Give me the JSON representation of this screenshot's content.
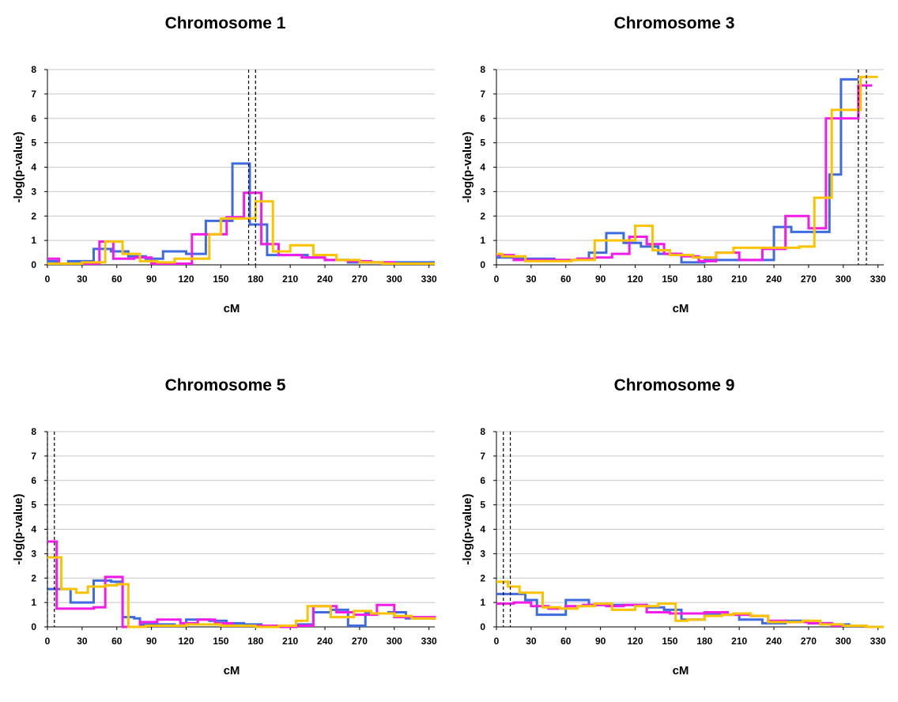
{
  "colors": {
    "blue": "#3F6BE0",
    "magenta": "#F21BE8",
    "yellow": "#F9C300",
    "grid": "#C8C8C8",
    "marker": "#000000"
  },
  "chart_data": [
    {
      "type": "line",
      "title": "Chromosome 1",
      "xlabel": "cM",
      "ylabel": "-log(p-value)",
      "xlim": [
        0,
        335
      ],
      "ylim": [
        0,
        8
      ],
      "xticks": [
        0,
        30,
        60,
        90,
        120,
        150,
        180,
        210,
        240,
        270,
        300,
        330
      ],
      "yticks": [
        0,
        1,
        2,
        3,
        4,
        5,
        6,
        7,
        8
      ],
      "grid": true,
      "markers": [
        174,
        180
      ],
      "series": [
        {
          "color": "blue",
          "x": [
            0,
            8,
            18,
            30,
            40,
            55,
            70,
            85,
            100,
            120,
            137,
            147,
            160,
            175,
            190,
            205,
            225,
            240,
            260,
            280,
            335
          ],
          "y": [
            0.15,
            0.05,
            0.15,
            0.15,
            0.65,
            0.55,
            0.35,
            0.25,
            0.55,
            0.45,
            1.8,
            1.8,
            4.15,
            1.65,
            0.4,
            0.4,
            0.3,
            0.2,
            0.1,
            0.1,
            0.1
          ]
        },
        {
          "color": "magenta",
          "x": [
            0,
            10,
            20,
            35,
            45,
            57,
            75,
            90,
            110,
            125,
            140,
            155,
            170,
            185,
            200,
            220,
            240,
            260,
            280,
            300,
            335
          ],
          "y": [
            0.25,
            0.05,
            0.05,
            0.05,
            0.95,
            0.25,
            0.3,
            0.05,
            0.05,
            1.25,
            1.25,
            1.95,
            2.95,
            0.85,
            0.4,
            0.3,
            0.2,
            0.15,
            0.1,
            0.05,
            0.05
          ]
        },
        {
          "color": "yellow",
          "x": [
            0,
            15,
            30,
            40,
            50,
            65,
            80,
            95,
            110,
            125,
            140,
            150,
            165,
            180,
            195,
            210,
            230,
            250,
            270,
            290,
            335
          ],
          "y": [
            0.05,
            0.05,
            0.1,
            0.1,
            0.95,
            0.45,
            0.15,
            0.1,
            0.25,
            0.25,
            1.25,
            1.9,
            1.9,
            2.6,
            0.55,
            0.8,
            0.4,
            0.2,
            0.1,
            0.05,
            0.05
          ]
        }
      ]
    },
    {
      "type": "line",
      "title": "Chromosome 3",
      "xlabel": "cM",
      "ylabel": "-log(p-value)",
      "xlim": [
        0,
        335
      ],
      "ylim": [
        0,
        8
      ],
      "xticks": [
        0,
        30,
        60,
        90,
        120,
        150,
        180,
        210,
        240,
        270,
        300,
        330
      ],
      "yticks": [
        0,
        1,
        2,
        3,
        4,
        5,
        6,
        7,
        8
      ],
      "grid": true,
      "markers": [
        313,
        320
      ],
      "series": [
        {
          "color": "blue",
          "x": [
            0,
            15,
            30,
            50,
            70,
            80,
            95,
            110,
            125,
            140,
            160,
            180,
            200,
            220,
            240,
            255,
            275,
            288,
            298,
            313
          ],
          "y": [
            0.3,
            0.25,
            0.25,
            0.2,
            0.25,
            0.5,
            1.3,
            0.9,
            0.75,
            0.45,
            0.1,
            0.2,
            0.2,
            0.2,
            1.55,
            1.35,
            1.35,
            3.7,
            7.6,
            7.6
          ]
        },
        {
          "color": "magenta",
          "x": [
            0,
            15,
            30,
            50,
            70,
            85,
            100,
            115,
            130,
            145,
            160,
            175,
            190,
            210,
            230,
            250,
            270,
            285,
            297,
            313,
            325
          ],
          "y": [
            0.4,
            0.2,
            0.2,
            0.2,
            0.25,
            0.3,
            0.45,
            1.15,
            0.85,
            0.45,
            0.35,
            0.15,
            0.5,
            0.2,
            0.65,
            2.0,
            1.5,
            6.0,
            6.0,
            7.35,
            7.35
          ]
        },
        {
          "color": "yellow",
          "x": [
            0,
            5,
            25,
            45,
            65,
            85,
            105,
            120,
            135,
            150,
            170,
            190,
            205,
            225,
            245,
            262,
            275,
            290,
            315,
            330
          ],
          "y": [
            0.45,
            0.35,
            0.15,
            0.15,
            0.2,
            1.0,
            1.0,
            1.6,
            0.6,
            0.4,
            0.3,
            0.5,
            0.7,
            0.7,
            0.7,
            0.75,
            2.75,
            6.35,
            7.7,
            7.7
          ]
        }
      ]
    },
    {
      "type": "line",
      "title": "Chromosome 5",
      "xlabel": "cM",
      "ylabel": "-log(p-value)",
      "xlim": [
        0,
        335
      ],
      "ylim": [
        0,
        8
      ],
      "xticks": [
        0,
        30,
        60,
        90,
        120,
        150,
        180,
        210,
        240,
        270,
        300,
        330
      ],
      "yticks": [
        0,
        1,
        2,
        3,
        4,
        5,
        6,
        7,
        8
      ],
      "grid": true,
      "markers": [
        0,
        6
      ],
      "series": [
        {
          "color": "blue",
          "x": [
            0,
            15,
            20,
            40,
            55,
            65,
            75,
            80,
            95,
            110,
            120,
            140,
            155,
            170,
            185,
            200,
            215,
            230,
            245,
            260,
            275,
            295,
            310,
            335
          ],
          "y": [
            1.55,
            1.55,
            1.0,
            1.9,
            1.85,
            0.4,
            0.35,
            0.1,
            0.1,
            0.05,
            0.3,
            0.25,
            0.15,
            0.1,
            0.05,
            0.0,
            0.1,
            0.6,
            0.7,
            0.05,
            0.55,
            0.6,
            0.35,
            0.3
          ]
        },
        {
          "color": "magenta",
          "x": [
            0,
            8,
            20,
            40,
            50,
            65,
            80,
            95,
            115,
            130,
            145,
            160,
            180,
            200,
            215,
            230,
            250,
            265,
            285,
            300,
            335
          ],
          "y": [
            3.5,
            0.75,
            0.75,
            0.8,
            2.05,
            0.0,
            0.2,
            0.3,
            0.15,
            0.3,
            0.15,
            0.05,
            0.05,
            0.0,
            0.05,
            0.85,
            0.6,
            0.5,
            0.9,
            0.4,
            0.3
          ]
        },
        {
          "color": "yellow",
          "x": [
            0,
            12,
            25,
            35,
            50,
            60,
            70,
            85,
            100,
            120,
            135,
            150,
            165,
            180,
            200,
            215,
            225,
            245,
            265,
            280,
            300,
            315,
            335
          ],
          "y": [
            2.85,
            1.55,
            1.4,
            1.65,
            1.7,
            1.75,
            0.0,
            0.05,
            0.05,
            0.1,
            0.1,
            0.05,
            0.05,
            0.0,
            0.05,
            0.25,
            0.85,
            0.4,
            0.65,
            0.55,
            0.45,
            0.35,
            0.3
          ]
        }
      ]
    },
    {
      "type": "line",
      "title": "Chromosome 9",
      "xlabel": "cM",
      "ylabel": "-log(p-value)",
      "xlim": [
        0,
        335
      ],
      "ylim": [
        0,
        8
      ],
      "xticks": [
        0,
        30,
        60,
        90,
        120,
        150,
        180,
        210,
        240,
        270,
        300,
        330
      ],
      "yticks": [
        0,
        1,
        2,
        3,
        4,
        5,
        6,
        7,
        8
      ],
      "grid": true,
      "markers": [
        6,
        12
      ],
      "series": [
        {
          "color": "blue",
          "x": [
            0,
            15,
            25,
            35,
            50,
            60,
            80,
            95,
            110,
            130,
            145,
            160,
            180,
            195,
            210,
            230,
            250,
            270,
            290,
            305,
            320
          ],
          "y": [
            1.35,
            1.35,
            1.1,
            0.5,
            0.5,
            1.1,
            0.9,
            0.9,
            0.9,
            0.8,
            0.7,
            0.3,
            0.55,
            0.5,
            0.3,
            0.15,
            0.25,
            0.15,
            0.1,
            0.05,
            0.0
          ]
        },
        {
          "color": "magenta",
          "x": [
            0,
            15,
            30,
            45,
            60,
            75,
            95,
            110,
            130,
            150,
            165,
            180,
            200,
            220,
            235,
            250,
            270,
            290,
            305
          ],
          "y": [
            0.95,
            1.0,
            0.85,
            0.75,
            0.85,
            0.9,
            0.85,
            0.9,
            0.6,
            0.55,
            0.55,
            0.6,
            0.5,
            0.45,
            0.25,
            0.2,
            0.15,
            0.05,
            0.0
          ]
        },
        {
          "color": "yellow",
          "x": [
            0,
            10,
            20,
            40,
            55,
            70,
            85,
            100,
            120,
            140,
            155,
            165,
            180,
            195,
            205,
            220,
            235,
            250,
            265,
            280,
            300,
            320,
            335
          ],
          "y": [
            1.85,
            1.65,
            1.4,
            0.8,
            0.75,
            0.85,
            0.95,
            0.7,
            0.85,
            0.95,
            0.25,
            0.3,
            0.45,
            0.5,
            0.55,
            0.45,
            0.2,
            0.2,
            0.25,
            0.1,
            0.05,
            0.0,
            0.0
          ]
        }
      ]
    }
  ]
}
